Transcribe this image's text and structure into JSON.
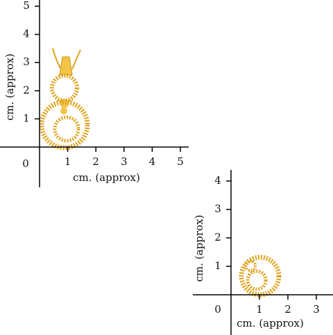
{
  "panels": [
    {
      "x_ticks": [
        0,
        1,
        2,
        3,
        4,
        5
      ],
      "y_ticks": [
        1,
        2,
        3,
        4,
        5
      ],
      "x_label": "cm. (approx)",
      "y_label": "cm. (approx)"
    },
    {
      "x_ticks": [
        0,
        1,
        2,
        3
      ],
      "y_ticks": [
        1,
        2,
        3,
        4
      ],
      "x_label": "cm. (approx)",
      "y_label": "cm. (approx)"
    }
  ]
}
